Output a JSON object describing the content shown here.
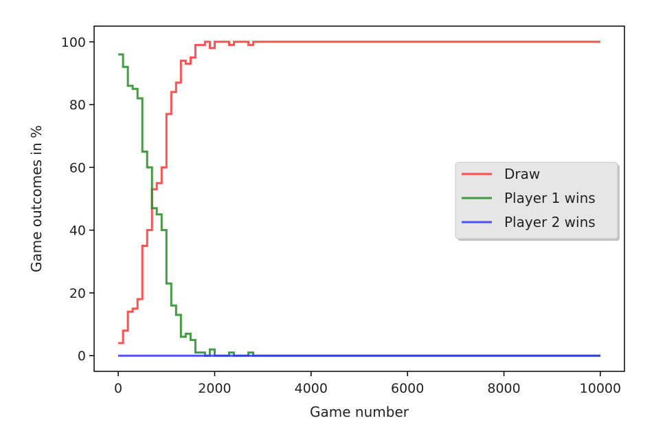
{
  "chart_data": {
    "type": "line",
    "xlabel": "Game number",
    "ylabel": "Game outcomes in %",
    "xlim": [
      -500,
      10500
    ],
    "ylim": [
      -5,
      105
    ],
    "xticks": [
      0,
      2000,
      4000,
      6000,
      8000,
      10000
    ],
    "yticks": [
      0,
      20,
      40,
      60,
      80,
      100
    ],
    "grid": false,
    "legend_position": "center-right",
    "series": [
      {
        "name": "Draw",
        "color": "#ff3333",
        "step": true,
        "x": [
          0,
          100,
          200,
          300,
          400,
          500,
          600,
          700,
          800,
          900,
          1000,
          1100,
          1200,
          1300,
          1400,
          1500,
          1600,
          1700,
          1800,
          1900,
          2000,
          2100,
          2200,
          2300,
          2400,
          2500,
          2600,
          2700,
          2800,
          2900,
          3000,
          4000,
          5000,
          6000,
          7000,
          8000,
          9000,
          10000
        ],
        "y": [
          4,
          8,
          14,
          15,
          18,
          35,
          40,
          53,
          55,
          60,
          77,
          84,
          87,
          94,
          93,
          95,
          99,
          99,
          100,
          98,
          100,
          100,
          100,
          99,
          100,
          100,
          100,
          99,
          100,
          100,
          100,
          100,
          100,
          100,
          100,
          100,
          100,
          100
        ]
      },
      {
        "name": "Player 1 wins",
        "color": "#228b22",
        "step": true,
        "x": [
          0,
          100,
          200,
          300,
          400,
          500,
          600,
          700,
          800,
          900,
          1000,
          1100,
          1200,
          1300,
          1400,
          1500,
          1600,
          1700,
          1800,
          1900,
          2000,
          2100,
          2200,
          2300,
          2400,
          2500,
          2600,
          2700,
          2800,
          2900,
          3000,
          4000,
          5000,
          6000,
          7000,
          8000,
          9000,
          10000
        ],
        "y": [
          96,
          92,
          86,
          85,
          82,
          65,
          60,
          47,
          45,
          40,
          23,
          16,
          13,
          6,
          7,
          5,
          1,
          1,
          0,
          2,
          0,
          0,
          0,
          1,
          0,
          0,
          0,
          1,
          0,
          0,
          0,
          0,
          0,
          0,
          0,
          0,
          0,
          0
        ]
      },
      {
        "name": "Player 2 wins",
        "color": "#3333ff",
        "step": true,
        "x": [
          0,
          10000
        ],
        "y": [
          0,
          0
        ]
      }
    ]
  }
}
